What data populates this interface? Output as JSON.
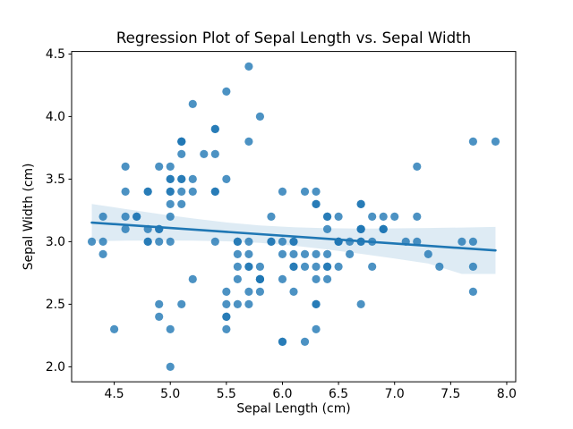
{
  "chart_data": {
    "type": "scatter",
    "title": "Regression Plot of Sepal Length vs. Sepal Width",
    "xlabel": "Sepal Length (cm)",
    "ylabel": "Sepal Width (cm)",
    "xlim": [
      4.12,
      8.08
    ],
    "ylim": [
      1.88,
      4.52
    ],
    "xticks": [
      4.5,
      5.0,
      5.5,
      6.0,
      6.5,
      7.0,
      7.5,
      8.0
    ],
    "yticks": [
      2.0,
      2.5,
      3.0,
      3.5,
      4.0,
      4.5
    ],
    "grid": false,
    "legend_position": "none",
    "marker_color": "#1f77b4",
    "marker_alpha": 0.8,
    "line_color": "#1f77b4",
    "band_color": "#1f77b4",
    "band_alpha": 0.15,
    "points": [
      [
        5.1,
        3.5
      ],
      [
        4.9,
        3.0
      ],
      [
        4.7,
        3.2
      ],
      [
        4.6,
        3.1
      ],
      [
        5.0,
        3.6
      ],
      [
        5.4,
        3.9
      ],
      [
        4.6,
        3.4
      ],
      [
        5.0,
        3.4
      ],
      [
        4.4,
        2.9
      ],
      [
        4.9,
        3.1
      ],
      [
        5.4,
        3.7
      ],
      [
        4.8,
        3.4
      ],
      [
        4.8,
        3.0
      ],
      [
        4.3,
        3.0
      ],
      [
        5.8,
        4.0
      ],
      [
        5.7,
        4.4
      ],
      [
        5.4,
        3.9
      ],
      [
        5.1,
        3.5
      ],
      [
        5.7,
        3.8
      ],
      [
        5.1,
        3.8
      ],
      [
        5.4,
        3.4
      ],
      [
        5.1,
        3.7
      ],
      [
        4.6,
        3.6
      ],
      [
        5.1,
        3.3
      ],
      [
        4.8,
        3.4
      ],
      [
        5.0,
        3.0
      ],
      [
        5.0,
        3.4
      ],
      [
        5.2,
        3.5
      ],
      [
        5.2,
        3.4
      ],
      [
        4.7,
        3.2
      ],
      [
        4.8,
        3.1
      ],
      [
        5.4,
        3.4
      ],
      [
        5.2,
        4.1
      ],
      [
        5.5,
        4.2
      ],
      [
        4.9,
        3.1
      ],
      [
        5.0,
        3.2
      ],
      [
        5.5,
        3.5
      ],
      [
        4.9,
        3.6
      ],
      [
        4.4,
        3.0
      ],
      [
        5.1,
        3.4
      ],
      [
        5.0,
        3.5
      ],
      [
        4.5,
        2.3
      ],
      [
        4.4,
        3.2
      ],
      [
        5.0,
        3.5
      ],
      [
        5.1,
        3.8
      ],
      [
        4.8,
        3.0
      ],
      [
        5.1,
        3.8
      ],
      [
        4.6,
        3.2
      ],
      [
        5.3,
        3.7
      ],
      [
        5.0,
        3.3
      ],
      [
        7.0,
        3.2
      ],
      [
        6.4,
        3.2
      ],
      [
        6.9,
        3.1
      ],
      [
        5.5,
        2.3
      ],
      [
        6.5,
        2.8
      ],
      [
        5.7,
        2.8
      ],
      [
        6.3,
        3.3
      ],
      [
        4.9,
        2.4
      ],
      [
        6.6,
        2.9
      ],
      [
        5.2,
        2.7
      ],
      [
        5.0,
        2.0
      ],
      [
        5.9,
        3.0
      ],
      [
        6.0,
        2.2
      ],
      [
        6.1,
        2.9
      ],
      [
        5.6,
        2.9
      ],
      [
        6.7,
        3.1
      ],
      [
        5.6,
        3.0
      ],
      [
        5.8,
        2.7
      ],
      [
        6.2,
        2.2
      ],
      [
        5.6,
        2.5
      ],
      [
        5.9,
        3.2
      ],
      [
        6.1,
        2.8
      ],
      [
        6.3,
        2.5
      ],
      [
        6.1,
        2.8
      ],
      [
        6.4,
        2.9
      ],
      [
        6.6,
        3.0
      ],
      [
        6.8,
        2.8
      ],
      [
        6.7,
        3.0
      ],
      [
        6.0,
        2.9
      ],
      [
        5.7,
        2.6
      ],
      [
        5.5,
        2.4
      ],
      [
        5.5,
        2.4
      ],
      [
        5.8,
        2.7
      ],
      [
        6.0,
        2.7
      ],
      [
        5.4,
        3.0
      ],
      [
        6.0,
        3.4
      ],
      [
        6.7,
        3.1
      ],
      [
        6.3,
        2.3
      ],
      [
        5.6,
        3.0
      ],
      [
        5.5,
        2.5
      ],
      [
        5.5,
        2.6
      ],
      [
        6.1,
        3.0
      ],
      [
        5.8,
        2.6
      ],
      [
        5.0,
        2.3
      ],
      [
        5.6,
        2.7
      ],
      [
        5.7,
        3.0
      ],
      [
        5.7,
        2.9
      ],
      [
        6.2,
        2.9
      ],
      [
        5.1,
        2.5
      ],
      [
        5.7,
        2.8
      ],
      [
        6.3,
        3.3
      ],
      [
        5.8,
        2.7
      ],
      [
        7.1,
        3.0
      ],
      [
        6.3,
        2.9
      ],
      [
        6.5,
        3.0
      ],
      [
        7.6,
        3.0
      ],
      [
        4.9,
        2.5
      ],
      [
        7.3,
        2.9
      ],
      [
        6.7,
        2.5
      ],
      [
        7.2,
        3.6
      ],
      [
        6.5,
        3.2
      ],
      [
        6.4,
        2.7
      ],
      [
        6.8,
        3.0
      ],
      [
        5.7,
        2.5
      ],
      [
        5.8,
        2.8
      ],
      [
        6.4,
        3.2
      ],
      [
        6.5,
        3.0
      ],
      [
        7.7,
        3.8
      ],
      [
        7.7,
        2.6
      ],
      [
        6.0,
        2.2
      ],
      [
        6.9,
        3.2
      ],
      [
        5.6,
        2.8
      ],
      [
        7.7,
        2.8
      ],
      [
        6.3,
        2.7
      ],
      [
        6.7,
        3.3
      ],
      [
        7.2,
        3.2
      ],
      [
        6.2,
        2.8
      ],
      [
        6.1,
        3.0
      ],
      [
        6.4,
        2.8
      ],
      [
        7.2,
        3.0
      ],
      [
        7.4,
        2.8
      ],
      [
        7.9,
        3.8
      ],
      [
        6.4,
        2.8
      ],
      [
        6.3,
        2.8
      ],
      [
        6.1,
        2.6
      ],
      [
        7.7,
        3.0
      ],
      [
        6.3,
        3.4
      ],
      [
        6.4,
        3.1
      ],
      [
        6.0,
        3.0
      ],
      [
        6.9,
        3.1
      ],
      [
        6.7,
        3.1
      ],
      [
        6.9,
        3.1
      ],
      [
        5.8,
        2.7
      ],
      [
        6.8,
        3.2
      ],
      [
        6.7,
        3.3
      ],
      [
        6.7,
        3.0
      ],
      [
        6.3,
        2.5
      ],
      [
        6.5,
        3.0
      ],
      [
        6.2,
        3.4
      ],
      [
        5.9,
        3.0
      ]
    ],
    "regression_line": {
      "slope": -0.0619,
      "intercept": 3.4189,
      "x_start": 4.3,
      "x_end": 7.9
    },
    "ci_band": {
      "x": [
        4.3,
        4.6,
        4.9,
        5.2,
        5.5,
        5.8,
        6.1,
        6.4,
        6.7,
        7.0,
        7.3,
        7.6,
        7.9
      ],
      "upper": [
        3.301,
        3.261,
        3.222,
        3.186,
        3.154,
        3.13,
        3.115,
        3.107,
        3.105,
        3.106,
        3.109,
        3.113,
        3.118
      ],
      "lower": [
        3.004,
        3.008,
        3.009,
        3.008,
        3.003,
        2.99,
        2.968,
        2.938,
        2.903,
        2.865,
        2.825,
        2.742,
        2.742
      ]
    }
  }
}
